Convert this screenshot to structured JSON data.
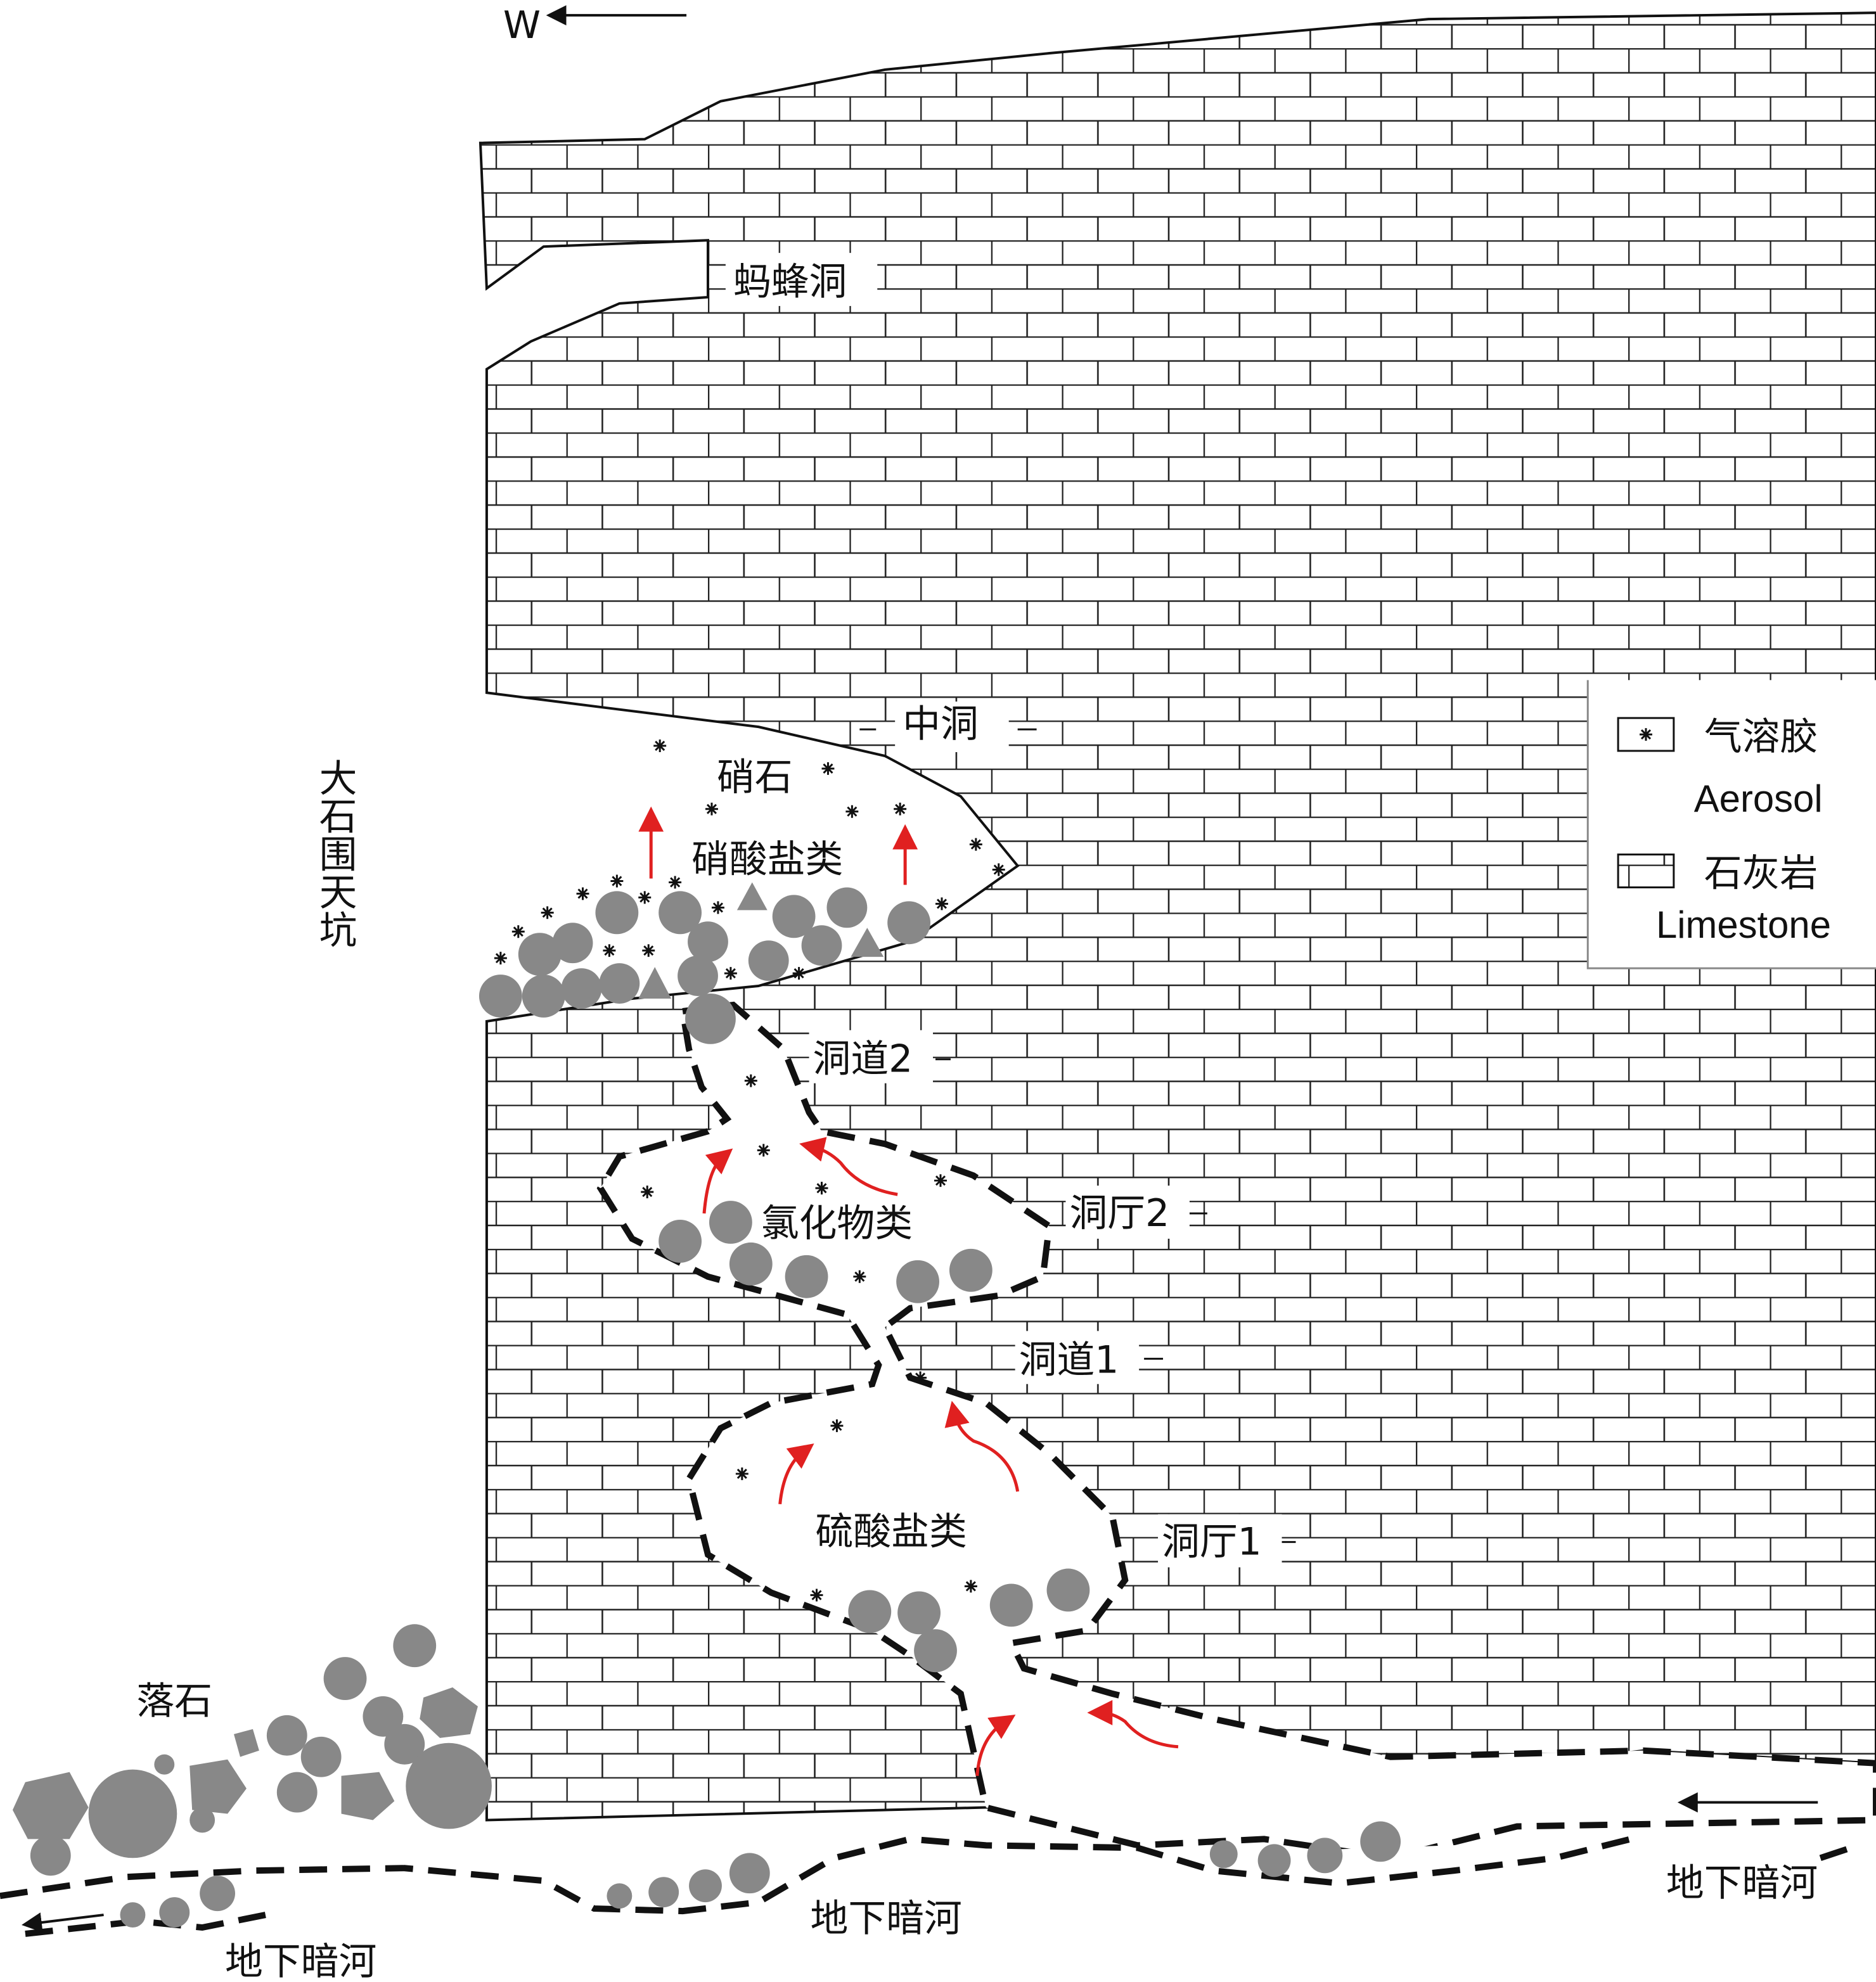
{
  "direction": "W",
  "labels": {
    "mafeng_cave": "蚂蜂洞",
    "middle_cave": "中洞",
    "tiankeng": "大石围天坑",
    "saltpeter": "硝石",
    "nitrates": "硝酸盐类",
    "passage2": "洞道2",
    "chlorides": "氯化物类",
    "hall2": "洞厅2",
    "passage1": "洞道1",
    "sulfates": "硫酸盐类",
    "hall1": "洞厅1",
    "rockfall": "落石",
    "river_left": "地下暗河",
    "river_mid": "地下暗河",
    "river_right": "地下暗河"
  },
  "legend": [
    {
      "zh": "气溶胶",
      "en": "Aerosol"
    },
    {
      "zh": "石灰岩",
      "en": "Limestone"
    }
  ]
}
